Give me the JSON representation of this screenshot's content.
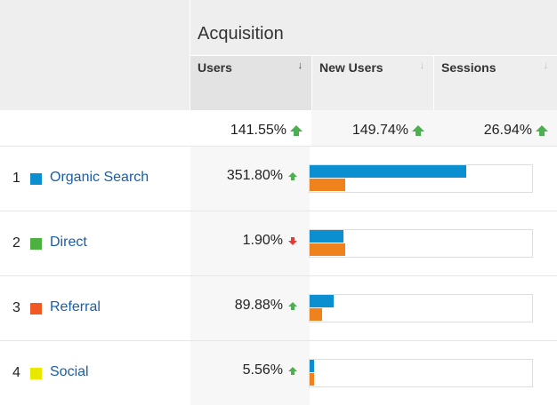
{
  "header": {
    "title": "Acquisition",
    "columns": [
      {
        "label": "Users",
        "sorted": true
      },
      {
        "label": "New Users",
        "sorted": false
      },
      {
        "label": "Sessions",
        "sorted": false
      }
    ]
  },
  "totals": [
    {
      "value": "141.55%",
      "trend": "up"
    },
    {
      "value": "149.74%",
      "trend": "up"
    },
    {
      "value": "26.94%",
      "trend": "up"
    }
  ],
  "rows": [
    {
      "rank": "1",
      "channel": "Organic Search",
      "color": "#0b8fd0",
      "users_change": "351.80%",
      "trend": "up",
      "bar_primary": 0.71,
      "bar_secondary": 0.16
    },
    {
      "rank": "2",
      "channel": "Direct",
      "color": "#4cb140",
      "users_change": "1.90%",
      "trend": "down",
      "bar_primary": 0.155,
      "bar_secondary": 0.16
    },
    {
      "rank": "3",
      "channel": "Referral",
      "color": "#f05a22",
      "users_change": "89.88%",
      "trend": "up",
      "bar_primary": 0.11,
      "bar_secondary": 0.055
    },
    {
      "rank": "4",
      "channel": "Social",
      "color": "#e8e800",
      "users_change": "5.56%",
      "trend": "up",
      "bar_primary": 0.02,
      "bar_secondary": 0.02
    }
  ],
  "colors": {
    "bar_primary": "#0b8fd0",
    "bar_secondary": "#f0821e",
    "up": "#4caf50",
    "down": "#e53935",
    "link": "#1a5ea8"
  }
}
